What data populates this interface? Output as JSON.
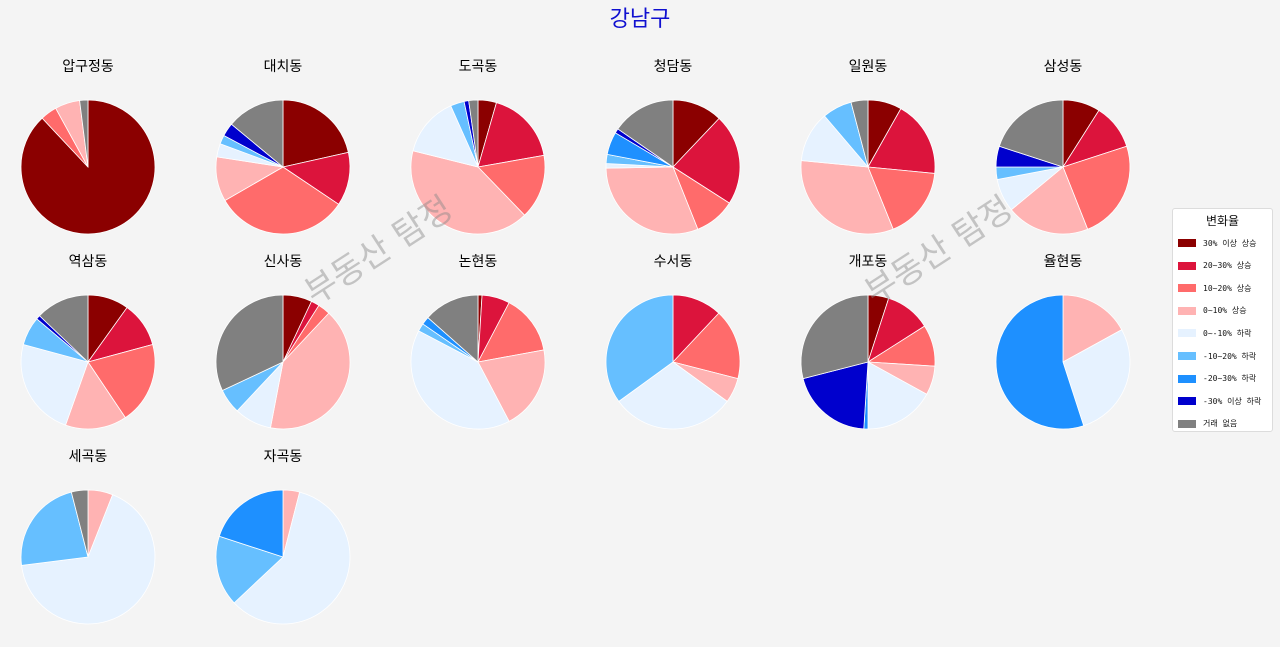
{
  "chart_data": {
    "type": "pie",
    "title": "강남구",
    "legend": {
      "title": "변화율",
      "placement": "right",
      "entries": [
        {
          "label": "30% 이상 상승",
          "color": "#8b0000"
        },
        {
          "label": "20~30% 상승",
          "color": "#dc143c"
        },
        {
          "label": "10~20% 상승",
          "color": "#ff6b6b"
        },
        {
          "label": "0~10% 상승",
          "color": "#ffb3b3"
        },
        {
          "label": "0~-10% 하락",
          "color": "#e6f2ff"
        },
        {
          "label": "-10~20% 하락",
          "color": "#66bfff"
        },
        {
          "label": "-20~30% 하락",
          "color": "#1e90ff"
        },
        {
          "label": "-30% 이상 하락",
          "color": "#0000cd"
        },
        {
          "label": "거래 없음",
          "color": "#808080"
        }
      ]
    },
    "watermark": "부동산 탐정",
    "pies": [
      {
        "name": "압구정동",
        "values": [
          88,
          0,
          4,
          6,
          0,
          0,
          0,
          0,
          2
        ]
      },
      {
        "name": "대치동",
        "values": [
          20,
          12,
          30,
          10,
          3,
          2,
          0,
          3,
          13
        ]
      },
      {
        "name": "도곡동",
        "values": [
          4,
          16,
          14,
          37,
          13,
          3,
          0,
          1,
          2
        ]
      },
      {
        "name": "청담동",
        "values": [
          11,
          20,
          9,
          28,
          1,
          2,
          5,
          1,
          14
        ]
      },
      {
        "name": "일원동",
        "values": [
          8,
          18,
          17,
          32,
          12,
          7,
          0,
          0,
          4
        ]
      },
      {
        "name": "삼성동",
        "values": [
          9,
          11,
          24,
          20,
          8,
          3,
          0,
          5,
          20
        ]
      },
      {
        "name": "역삼동",
        "values": [
          10,
          11,
          20,
          15,
          24,
          7,
          0,
          1,
          13
        ]
      },
      {
        "name": "신사동",
        "values": [
          7,
          2,
          3,
          41,
          9,
          6,
          0,
          0,
          32
        ]
      },
      {
        "name": "논현동",
        "values": [
          1,
          7,
          15,
          21,
          42,
          2,
          2,
          0,
          14
        ]
      },
      {
        "name": "수서동",
        "values": [
          0,
          12,
          17,
          6,
          30,
          35,
          0,
          0,
          0
        ]
      },
      {
        "name": "개포동",
        "values": [
          5,
          11,
          10,
          7,
          17,
          0,
          1,
          20,
          29
        ]
      },
      {
        "name": "율현동",
        "values": [
          0,
          0,
          0,
          17,
          28,
          0,
          55,
          0,
          0
        ]
      },
      {
        "name": "세곡동",
        "values": [
          0,
          0,
          0,
          6,
          67,
          23,
          0,
          0,
          4
        ]
      },
      {
        "name": "자곡동",
        "values": [
          0,
          0,
          0,
          4,
          59,
          17,
          20,
          0,
          0
        ]
      }
    ]
  }
}
